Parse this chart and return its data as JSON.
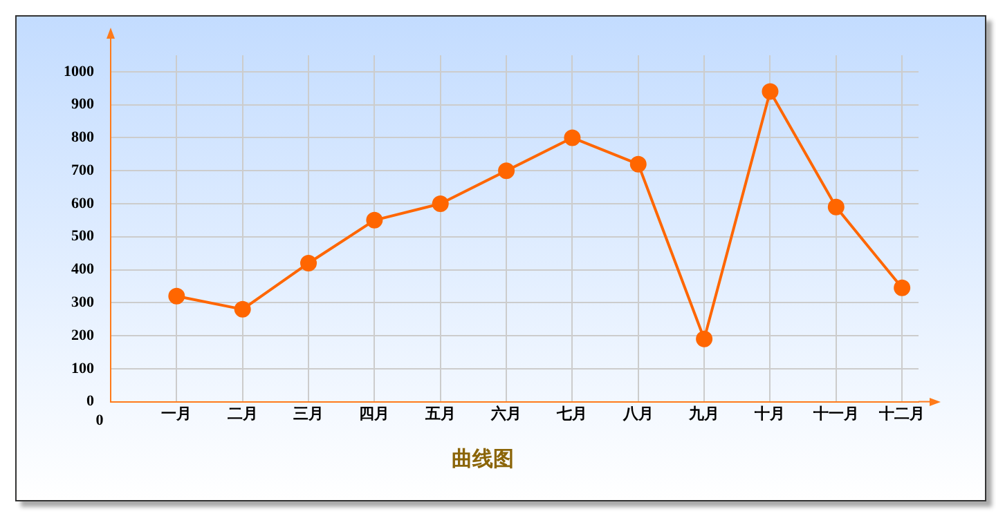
{
  "chart_data": {
    "type": "line",
    "title": "曲线图",
    "categories": [
      "一月",
      "二月",
      "三月",
      "四月",
      "五月",
      "六月",
      "七月",
      "八月",
      "九月",
      "十月",
      "十一月",
      "十二月"
    ],
    "series": [
      {
        "color": "#ff6600",
        "values": [
          320,
          280,
          420,
          550,
          600,
          700,
          800,
          720,
          190,
          940,
          590,
          345
        ]
      }
    ],
    "ylim": [
      0,
      1050
    ],
    "yticks": [
      0,
      100,
      200,
      300,
      400,
      500,
      600,
      700,
      800,
      900,
      1000
    ],
    "grid": true,
    "legend": false,
    "marker": "circle",
    "line_style": "solid",
    "annotations": [
      "0"
    ]
  }
}
